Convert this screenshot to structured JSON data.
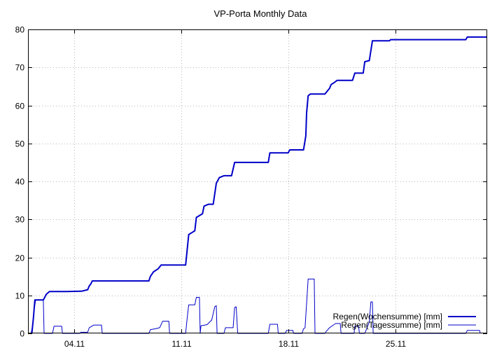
{
  "chart_data": {
    "type": "line",
    "title": "VP-Porta Monthly Data",
    "xlabel": "",
    "ylabel": "",
    "xlim": [
      0,
      30
    ],
    "ylim": [
      0,
      80
    ],
    "grid": true,
    "legend_position": "bottom-right",
    "x_ticks": [
      {
        "x": 3,
        "label": "04.11"
      },
      {
        "x": 10,
        "label": "11.11"
      },
      {
        "x": 17,
        "label": "18.11"
      },
      {
        "x": 24,
        "label": "25.11"
      }
    ],
    "y_ticks": [
      0,
      10,
      20,
      30,
      40,
      50,
      60,
      70,
      80
    ],
    "series": [
      {
        "name": "Regen(Wochensumme) [mm]",
        "color": "#0000c8",
        "width": 2,
        "points": [
          [
            0.25,
            0
          ],
          [
            0.35,
            4
          ],
          [
            0.45,
            8.8
          ],
          [
            1.0,
            8.8
          ],
          [
            1.2,
            10.3
          ],
          [
            1.4,
            11.0
          ],
          [
            2.5,
            11.0
          ],
          [
            3.5,
            11.1
          ],
          [
            3.9,
            11.5
          ],
          [
            4.0,
            12.5
          ],
          [
            4.1,
            13.0
          ],
          [
            4.2,
            13.8
          ],
          [
            7.9,
            13.8
          ],
          [
            8.0,
            15.0
          ],
          [
            8.2,
            16.2
          ],
          [
            8.5,
            17.0
          ],
          [
            8.7,
            18.0
          ],
          [
            10.3,
            18.0
          ],
          [
            10.4,
            22.0
          ],
          [
            10.5,
            26.0
          ],
          [
            10.7,
            26.5
          ],
          [
            10.9,
            27.0
          ],
          [
            11.0,
            30.5
          ],
          [
            11.4,
            31.5
          ],
          [
            11.5,
            33.5
          ],
          [
            11.8,
            34.0
          ],
          [
            12.1,
            34.0
          ],
          [
            12.3,
            39.5
          ],
          [
            12.5,
            41.0
          ],
          [
            12.8,
            41.5
          ],
          [
            13.3,
            41.5
          ],
          [
            13.5,
            45.0
          ],
          [
            15.7,
            45.0
          ],
          [
            15.8,
            47.5
          ],
          [
            17.0,
            47.5
          ],
          [
            17.1,
            48.3
          ],
          [
            18.0,
            48.3
          ],
          [
            18.15,
            52.0
          ],
          [
            18.2,
            58.0
          ],
          [
            18.3,
            62.5
          ],
          [
            18.45,
            63.0
          ],
          [
            19.4,
            63.0
          ],
          [
            19.5,
            63.5
          ],
          [
            19.7,
            64.5
          ],
          [
            19.8,
            65.5
          ],
          [
            20.0,
            66.0
          ],
          [
            20.2,
            66.6
          ],
          [
            21.2,
            66.6
          ],
          [
            21.35,
            68.5
          ],
          [
            21.9,
            68.5
          ],
          [
            22.0,
            71.5
          ],
          [
            22.3,
            71.8
          ],
          [
            22.5,
            77.0
          ],
          [
            23.6,
            77.0
          ],
          [
            23.7,
            77.3
          ],
          [
            28.6,
            77.3
          ],
          [
            28.7,
            78.0
          ],
          [
            30,
            78.0
          ]
        ]
      },
      {
        "name": "Regen(Tagessumme) [mm]",
        "color": "#0000c8",
        "width": 1,
        "points": [
          [
            0.2,
            0
          ],
          [
            0.3,
            2
          ],
          [
            0.4,
            6
          ],
          [
            0.5,
            8.8
          ],
          [
            1.0,
            8.8
          ],
          [
            1.05,
            0
          ],
          [
            1.6,
            0
          ],
          [
            1.7,
            1.9
          ],
          [
            2.2,
            1.9
          ],
          [
            2.25,
            0
          ],
          [
            3.4,
            0
          ],
          [
            3.45,
            0.3
          ],
          [
            3.9,
            0.3
          ],
          [
            4.0,
            1.5
          ],
          [
            4.3,
            2.2
          ],
          [
            4.8,
            2.2
          ],
          [
            4.85,
            0
          ],
          [
            7.9,
            0
          ],
          [
            8.0,
            1.0
          ],
          [
            8.3,
            1.2
          ],
          [
            8.6,
            1.5
          ],
          [
            8.8,
            3.2
          ],
          [
            9.2,
            3.2
          ],
          [
            9.25,
            0
          ],
          [
            10.3,
            0
          ],
          [
            10.4,
            4.0
          ],
          [
            10.5,
            7.5
          ],
          [
            10.9,
            7.5
          ],
          [
            11.0,
            9.5
          ],
          [
            11.2,
            9.5
          ],
          [
            11.25,
            0
          ],
          [
            11.3,
            2.0
          ],
          [
            11.7,
            2.3
          ],
          [
            12.0,
            3.5
          ],
          [
            12.2,
            7.0
          ],
          [
            12.3,
            7.3
          ],
          [
            12.35,
            0
          ],
          [
            12.8,
            0
          ],
          [
            12.9,
            1.5
          ],
          [
            13.4,
            1.5
          ],
          [
            13.5,
            6.8
          ],
          [
            13.6,
            7.0
          ],
          [
            13.7,
            0
          ],
          [
            15.7,
            0
          ],
          [
            15.8,
            2.4
          ],
          [
            16.3,
            2.4
          ],
          [
            16.35,
            0
          ],
          [
            16.8,
            0
          ],
          [
            16.9,
            0.8
          ],
          [
            17.3,
            0.8
          ],
          [
            17.35,
            0
          ],
          [
            17.9,
            0
          ],
          [
            18.0,
            1.2
          ],
          [
            18.1,
            1.5
          ],
          [
            18.3,
            14.3
          ],
          [
            18.7,
            14.3
          ],
          [
            18.75,
            0
          ],
          [
            19.4,
            0
          ],
          [
            19.5,
            0.6
          ],
          [
            19.7,
            1.5
          ],
          [
            20.1,
            2.6
          ],
          [
            20.4,
            2.6
          ],
          [
            20.45,
            0
          ],
          [
            21.3,
            0
          ],
          [
            21.35,
            1.9
          ],
          [
            21.6,
            1.9
          ],
          [
            21.65,
            0
          ],
          [
            22.0,
            0
          ],
          [
            22.3,
            3.0
          ],
          [
            22.4,
            8.3
          ],
          [
            22.5,
            8.3
          ],
          [
            22.55,
            0
          ],
          [
            28.6,
            0
          ],
          [
            28.7,
            0.8
          ],
          [
            29.5,
            0.8
          ],
          [
            29.55,
            0
          ]
        ]
      }
    ]
  }
}
